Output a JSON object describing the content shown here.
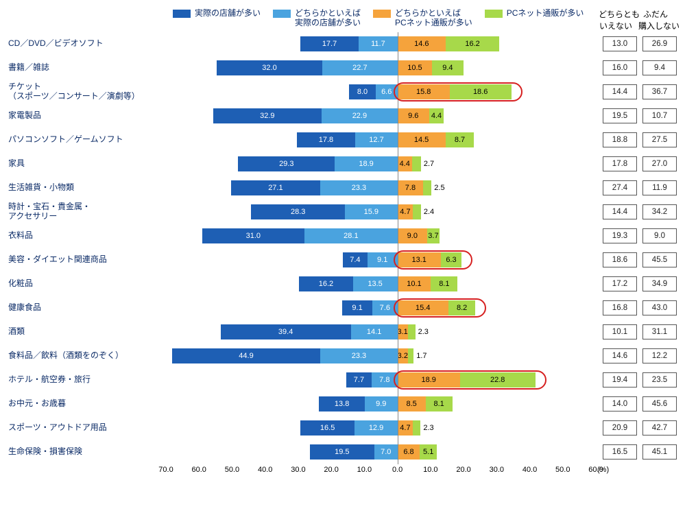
{
  "chart": {
    "type": "diverging-stacked-bar",
    "x_unit": "(%)",
    "x_left_max": 70.0,
    "x_right_max": 60.0,
    "x_tick_step": 10.0,
    "x_ticks_left": [
      "70.0",
      "60.0",
      "50.0",
      "40.0",
      "30.0",
      "20.0",
      "10.0"
    ],
    "x_tick_zero": "0.0",
    "x_ticks_right": [
      "10.0",
      "20.0",
      "30.0",
      "40.0",
      "50.0",
      "60.0"
    ],
    "colors": {
      "series1": "#1e5fb4",
      "series2": "#4aa3df",
      "series3": "#f5a33c",
      "series4": "#a7d94a",
      "text_dark": "#0a2a66",
      "box_border": "#555555",
      "zero_line": "#888888",
      "highlight": "#d62020",
      "background": "#ffffff"
    },
    "legend": [
      {
        "key": "series1",
        "label": "実際の店舗が多い"
      },
      {
        "key": "series2",
        "label": "どちらかといえば\n実際の店舗が多い"
      },
      {
        "key": "series3",
        "label": "どちらかといえば\nPCネット通販が多い"
      },
      {
        "key": "series4",
        "label": "PCネット通販が多い"
      }
    ],
    "side_columns": [
      {
        "key": "col1",
        "label": "どちらとも\nいえない"
      },
      {
        "key": "col2",
        "label": "ふだん\n購入しない"
      }
    ],
    "rows": [
      {
        "label": "CD／DVD／ビデオソフト",
        "s1": 17.7,
        "s2": 11.7,
        "s3": 14.6,
        "s4": 16.2,
        "c1": "13.0",
        "c2": "26.9",
        "hl": false
      },
      {
        "label": "書籍／雑誌",
        "s1": 32.0,
        "s2": 22.7,
        "s3": 10.5,
        "s4": 9.4,
        "c1": "16.0",
        "c2": "9.4",
        "hl": false
      },
      {
        "label": "チケット\n（スポーツ／コンサート／演劇等）",
        "s1": 8.0,
        "s2": 6.6,
        "s3": 15.8,
        "s4": 18.6,
        "c1": "14.4",
        "c2": "36.7",
        "hl": true
      },
      {
        "label": "家電製品",
        "s1": 32.9,
        "s2": 22.9,
        "s3": 9.6,
        "s4": 4.4,
        "c1": "19.5",
        "c2": "10.7",
        "hl": false
      },
      {
        "label": "パソコンソフト／ゲームソフト",
        "s1": 17.8,
        "s2": 12.7,
        "s3": 14.5,
        "s4": 8.7,
        "c1": "18.8",
        "c2": "27.5",
        "hl": false
      },
      {
        "label": "家具",
        "s1": 29.3,
        "s2": 18.9,
        "s3": 4.4,
        "s4": 2.7,
        "c1": "17.8",
        "c2": "27.0",
        "hl": false
      },
      {
        "label": "生活雑貨・小物類",
        "s1": 27.1,
        "s2": 23.3,
        "s3": 7.8,
        "s4": 2.5,
        "c1": "27.4",
        "c2": "11.9",
        "hl": false
      },
      {
        "label": "時計・宝石・貴金属・\nアクセサリー",
        "s1": 28.3,
        "s2": 15.9,
        "s3": 4.7,
        "s4": 2.4,
        "c1": "14.4",
        "c2": "34.2",
        "hl": false
      },
      {
        "label": "衣料品",
        "s1": 31.0,
        "s2": 28.1,
        "s3": 9.0,
        "s4": 3.7,
        "c1": "19.3",
        "c2": "9.0",
        "hl": false
      },
      {
        "label": "美容・ダイエット関連商品",
        "s1": 7.4,
        "s2": 9.1,
        "s3": 13.1,
        "s4": 6.3,
        "c1": "18.6",
        "c2": "45.5",
        "hl": true
      },
      {
        "label": "化粧品",
        "s1": 16.2,
        "s2": 13.5,
        "s3": 10.1,
        "s4": 8.1,
        "c1": "17.2",
        "c2": "34.9",
        "hl": false
      },
      {
        "label": "健康食品",
        "s1": 9.1,
        "s2": 7.6,
        "s3": 15.4,
        "s4": 8.2,
        "c1": "16.8",
        "c2": "43.0",
        "hl": true
      },
      {
        "label": "酒類",
        "s1": 39.4,
        "s2": 14.1,
        "s3": 3.1,
        "s4": 2.3,
        "c1": "10.1",
        "c2": "31.1",
        "hl": false
      },
      {
        "label": "食料品／飲料（酒類をのぞく）",
        "s1": 44.9,
        "s2": 23.3,
        "s3": 3.2,
        "s4": 1.7,
        "c1": "14.6",
        "c2": "12.2",
        "hl": false
      },
      {
        "label": "ホテル・航空券・旅行",
        "s1": 7.7,
        "s2": 7.8,
        "s3": 18.9,
        "s4": 22.8,
        "c1": "19.4",
        "c2": "23.5",
        "hl": true
      },
      {
        "label": "お中元・お歳暮",
        "s1": 13.8,
        "s2": 9.9,
        "s3": 8.5,
        "s4": 8.1,
        "c1": "14.0",
        "c2": "45.6",
        "hl": false
      },
      {
        "label": "スポーツ・アウトドア用品",
        "s1": 16.5,
        "s2": 12.9,
        "s3": 4.7,
        "s4": 2.3,
        "c1": "20.9",
        "c2": "42.7",
        "hl": false
      },
      {
        "label": "生命保険・損害保険",
        "s1": 19.5,
        "s2": 7.0,
        "s3": 6.8,
        "s4": 5.1,
        "c1": "16.5",
        "c2": "45.1",
        "hl": false
      }
    ]
  }
}
